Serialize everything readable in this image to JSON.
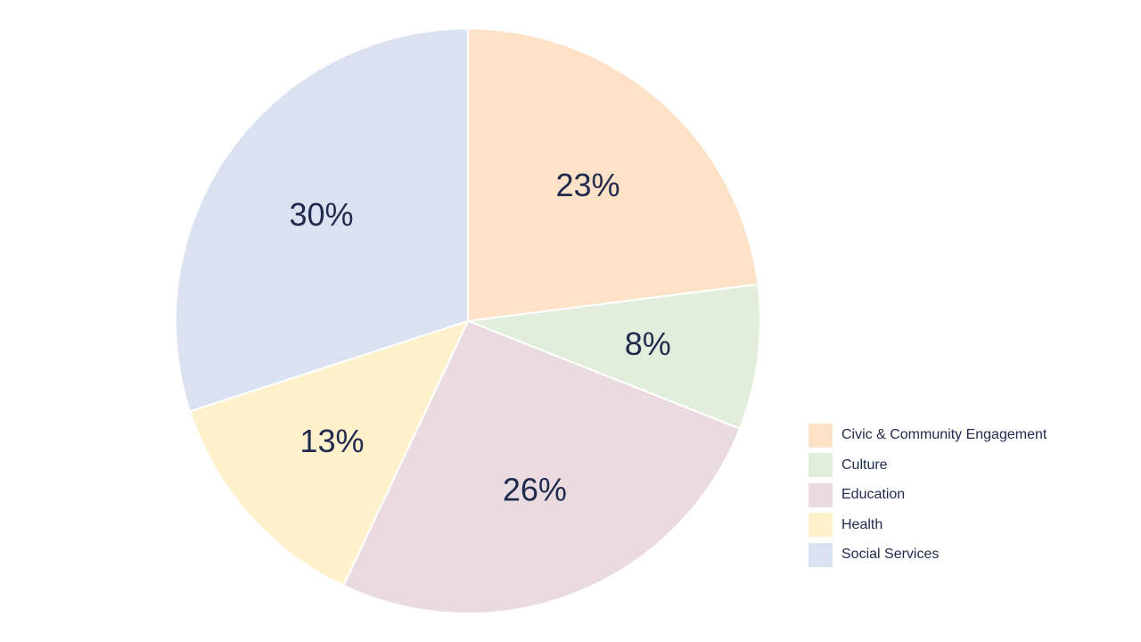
{
  "chart_data": {
    "type": "pie",
    "categories": [
      "Civic & Community Engagement",
      "Culture",
      "Education",
      "Health",
      "Social Services"
    ],
    "values": [
      23,
      8,
      26,
      13,
      30
    ],
    "value_labels": [
      "23%",
      "8%",
      "26%",
      "13%",
      "30%"
    ],
    "colors": [
      "#fde2c8",
      "#e0eedb",
      "#eadbe1",
      "#fff1cb",
      "#dae2f2"
    ],
    "start": "12 o'clock",
    "direction": "clockwise",
    "legend_position": "bottom-right",
    "title": ""
  },
  "legend": {
    "items": [
      {
        "label": "Civic & Community Engagement",
        "color": "#fde2c8"
      },
      {
        "label": "Culture",
        "color": "#e0eedb"
      },
      {
        "label": "Education",
        "color": "#eadbe1"
      },
      {
        "label": "Health",
        "color": "#fff1cb"
      },
      {
        "label": "Social Services",
        "color": "#dae2f2"
      }
    ]
  }
}
